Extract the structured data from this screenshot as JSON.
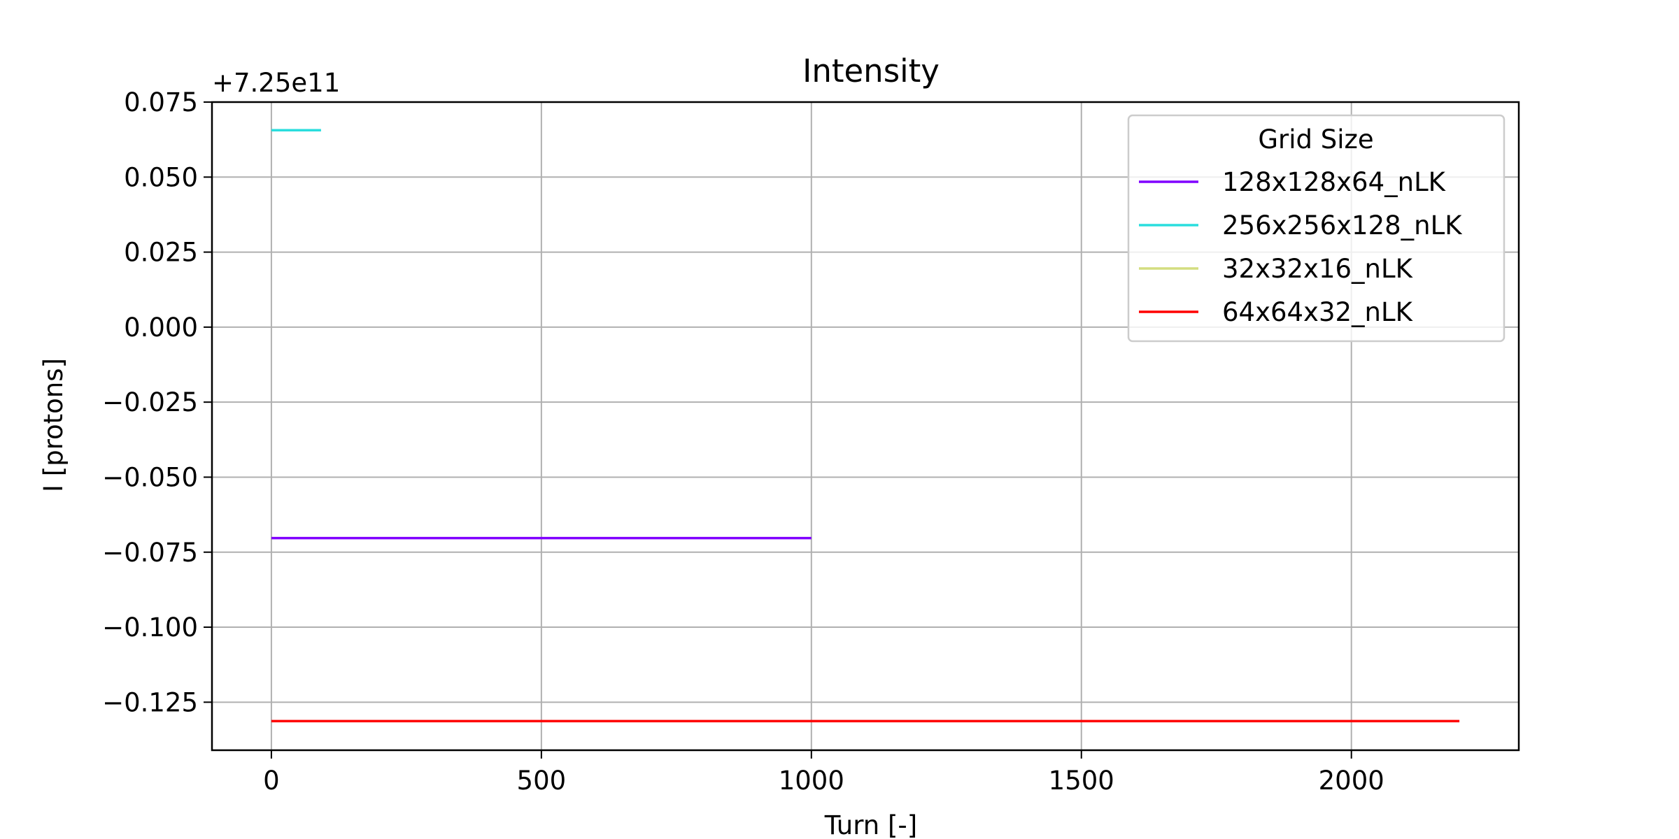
{
  "chart_data": {
    "type": "line",
    "title": "Intensity",
    "xlabel": "Turn [-]",
    "ylabel": "I [protons]",
    "y_offset_label": "+7.25e11",
    "xlim": [
      -110,
      2310
    ],
    "ylim": [
      -0.141,
      0.075
    ],
    "x_ticks": [
      0,
      500,
      1000,
      1500,
      2000
    ],
    "x_tick_labels": [
      "0",
      "500",
      "1000",
      "1500",
      "2000"
    ],
    "y_ticks": [
      0.075,
      0.05,
      0.025,
      0.0,
      -0.025,
      -0.05,
      -0.075,
      -0.1,
      -0.125
    ],
    "y_tick_labels": [
      "0.075",
      "0.050",
      "0.025",
      "0.000",
      "−0.025",
      "−0.050",
      "−0.075",
      "−0.100",
      "−0.125"
    ],
    "grid": true,
    "legend": {
      "title": "Grid Size",
      "position": "top-right"
    },
    "series": [
      {
        "name": "128x128x64_nLK",
        "color": "#8000ff",
        "x": [
          0,
          1000
        ],
        "y": [
          -0.0703,
          -0.0703
        ]
      },
      {
        "name": "256x256x128_nLK",
        "color": "#2adddd",
        "x": [
          0,
          92
        ],
        "y": [
          0.0656,
          0.0656
        ]
      },
      {
        "name": "32x32x16_nLK",
        "color": "#d4dd80",
        "x": [],
        "y": []
      },
      {
        "name": "64x64x32_nLK",
        "color": "#ff0000",
        "x": [
          0,
          2200
        ],
        "y": [
          -0.1313,
          -0.1313
        ]
      }
    ]
  }
}
